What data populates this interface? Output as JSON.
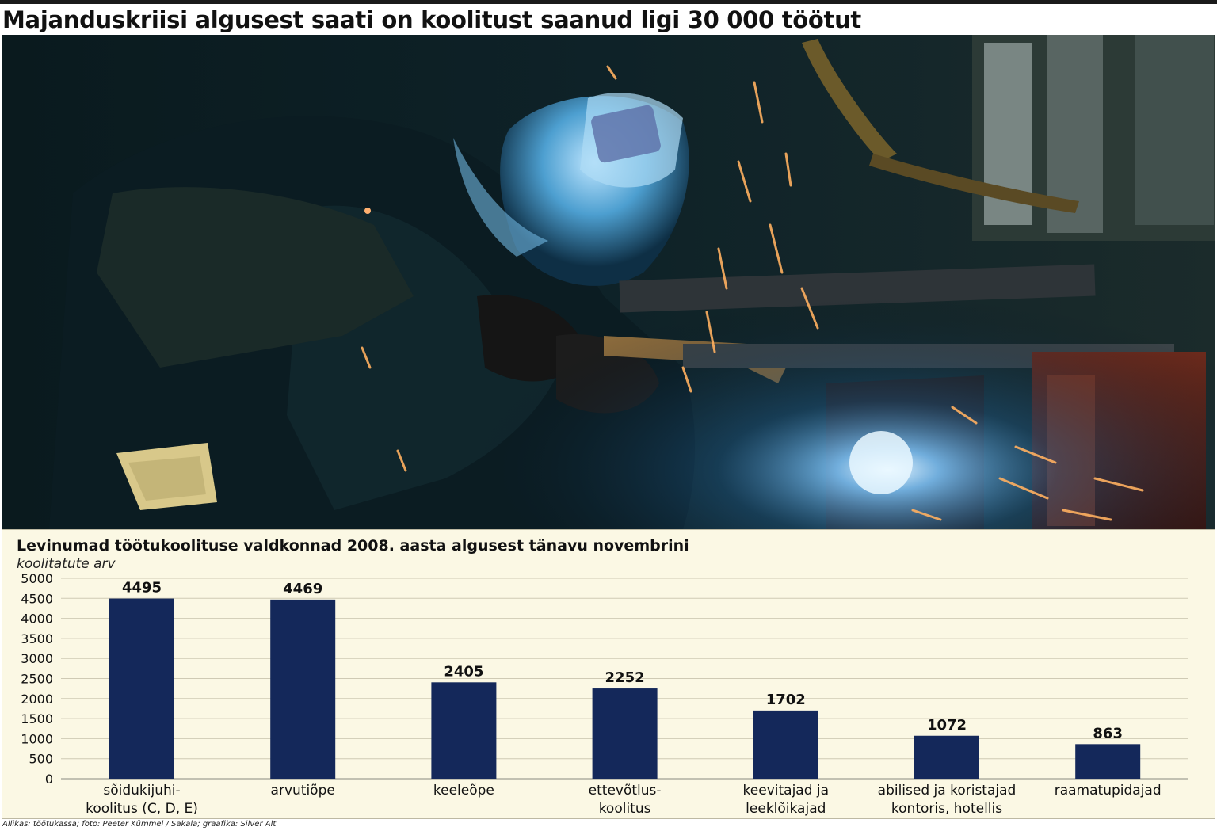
{
  "headline": "Majanduskriisi algusest saati on koolitust saanud ligi 30 000 töötut",
  "photo": {
    "subject": "welder-photo"
  },
  "chart_data": {
    "type": "bar",
    "title": "Levinumad töötukoolituse valdkonnad 2008. aasta algusest tänavu novembrini",
    "subtitle": "koolitatute arv",
    "categories": [
      [
        "sõidukijuhi-",
        "koolitus (C, D, E)"
      ],
      [
        "arvutiõpe"
      ],
      [
        "keeleõpe"
      ],
      [
        "ettevõtlus-",
        "koolitus"
      ],
      [
        "keevitajad ja",
        "leeklõikajad"
      ],
      [
        "abilised ja koristajad",
        "kontoris, hotellis"
      ],
      [
        "raamatupidajad"
      ]
    ],
    "values": [
      4495,
      4469,
      2405,
      2252,
      1702,
      1072,
      863
    ],
    "data_labels": [
      "4495",
      "4469",
      "2405",
      "2252",
      "1702",
      "1072",
      "863"
    ],
    "ylim": [
      0,
      5000
    ],
    "yticks": [
      0,
      500,
      1000,
      1500,
      2000,
      2500,
      3000,
      3500,
      4000,
      4500,
      5000
    ],
    "grid": true,
    "bar_color": "#14285a",
    "background_color": "#fbf8e4"
  },
  "source": "Allikas: töötukassa; foto: Peeter Kümmel / Sakala; graafika: Silver Alt"
}
